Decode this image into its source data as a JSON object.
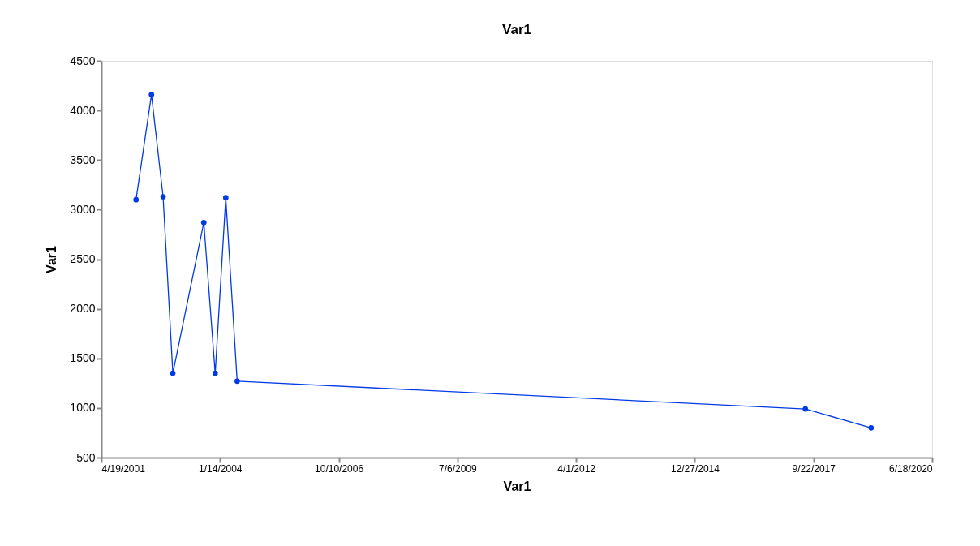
{
  "chart_data": {
    "type": "line",
    "title": "Var1",
    "xlabel": "Var1",
    "ylabel": "Var1",
    "x": [
      "2002-02-05",
      "2002-06-15",
      "2002-09-21",
      "2002-12-12",
      "2003-08-30",
      "2003-12-04",
      "2004-03-02",
      "2004-06-06",
      "2017-07-16",
      "2019-01-21"
    ],
    "series": [
      {
        "color": "#0039e6",
        "values": [
          3100,
          4160,
          3130,
          1350,
          2870,
          1350,
          3120,
          1270,
          990,
          800
        ]
      }
    ],
    "xlim": [
      "2001-04-19",
      "2020-06-18"
    ],
    "xticks": [
      {
        "value": "2001-04-19",
        "label": "4/19/2001"
      },
      {
        "value": "2004-01-14",
        "label": "1/14/2004"
      },
      {
        "value": "2006-10-10",
        "label": "10/10/2006"
      },
      {
        "value": "2009-07-06",
        "label": "7/6/2009"
      },
      {
        "value": "2012-04-01",
        "label": "4/1/2012"
      },
      {
        "value": "2014-12-27",
        "label": "12/27/2014"
      },
      {
        "value": "2017-09-22",
        "label": "9/22/2017"
      },
      {
        "value": "2020-06-18",
        "label": "6/18/2020"
      }
    ],
    "ylim": [
      500,
      4500
    ],
    "yticks": [
      500,
      1000,
      1500,
      2000,
      2500,
      3000,
      3500,
      4000,
      4500
    ],
    "grid": false,
    "marker": "circle",
    "line_style": "solid"
  }
}
